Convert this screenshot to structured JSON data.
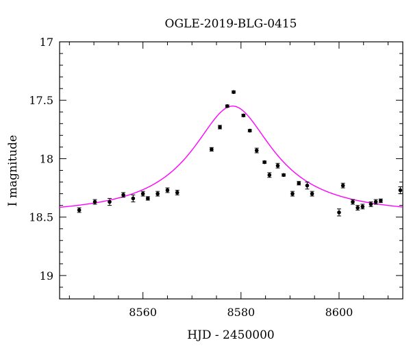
{
  "chart_data": {
    "type": "scatter",
    "title": "OGLE-2019-BLG-0415",
    "xlabel": "HJD - 2450000",
    "ylabel": "I magnitude",
    "xlim": [
      8543,
      8613
    ],
    "ylim": [
      17.0,
      19.2
    ],
    "y_inverted": true,
    "x_ticks": [
      8560,
      8580,
      8600
    ],
    "x_tick_labels": [
      "8560",
      "8580",
      "8600"
    ],
    "y_ticks": [
      17.0,
      17.5,
      18.0,
      18.5,
      19.0
    ],
    "y_tick_labels": [
      "17",
      "17.5",
      "18",
      "18.5",
      "19"
    ],
    "grid": false,
    "colors": {
      "points": "#000000",
      "model": "#ff00ff",
      "axes": "#000000"
    },
    "series": [
      {
        "kind": "points-with-errorbars",
        "x": [
          8547.0,
          8550.2,
          8553.2,
          8556.0,
          8558.0,
          8560.0,
          8561.0,
          8563.0,
          8565.0,
          8567.0,
          8574.0,
          8575.7,
          8577.2,
          8578.5,
          8580.5,
          8581.8,
          8583.2,
          8584.8,
          8585.8,
          8587.5,
          8588.7,
          8590.5,
          8591.8,
          8593.5,
          8594.5,
          8600.0,
          8600.8,
          8602.8,
          8603.8,
          8604.8,
          8606.5,
          8607.5,
          8608.5,
          8612.5
        ],
        "y": [
          18.44,
          18.37,
          18.37,
          18.31,
          18.34,
          18.3,
          18.34,
          18.3,
          18.27,
          18.29,
          17.92,
          17.73,
          17.55,
          17.43,
          17.63,
          17.76,
          17.93,
          18.03,
          18.14,
          18.06,
          18.14,
          18.3,
          18.21,
          18.23,
          18.3,
          18.46,
          18.23,
          18.37,
          18.42,
          18.41,
          18.39,
          18.37,
          18.36,
          18.27
        ],
        "err": [
          0.02,
          0.02,
          0.03,
          0.02,
          0.03,
          0.02,
          0.015,
          0.02,
          0.02,
          0.02,
          0.015,
          0.015,
          0.01,
          0.01,
          0.01,
          0.01,
          0.02,
          0.01,
          0.02,
          0.02,
          0.01,
          0.02,
          0.015,
          0.03,
          0.02,
          0.03,
          0.02,
          0.02,
          0.02,
          0.02,
          0.02,
          0.02,
          0.015,
          0.03
        ]
      },
      {
        "kind": "model-curve",
        "peak_x": 8578.3,
        "peak_mag": 17.55,
        "baseline_mag": 18.49,
        "tE": 8.2
      }
    ]
  }
}
